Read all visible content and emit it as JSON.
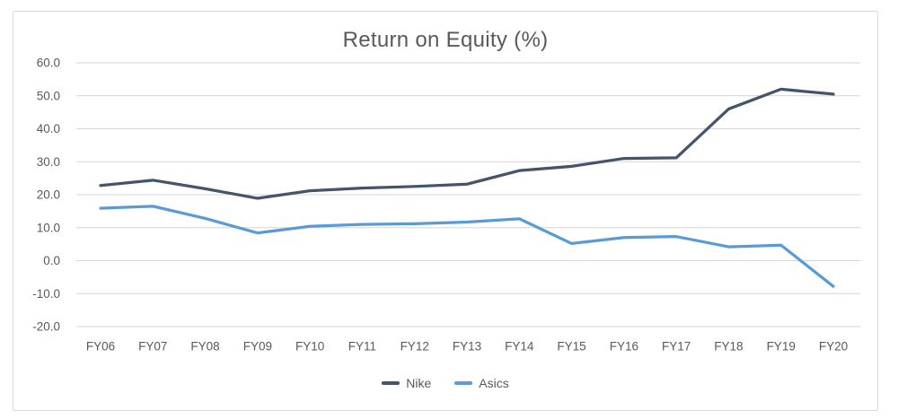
{
  "chart_data": {
    "type": "line",
    "title": "Return on Equity (%)",
    "categories": [
      "FY06",
      "FY07",
      "FY08",
      "FY09",
      "FY10",
      "FY11",
      "FY12",
      "FY13",
      "FY14",
      "FY15",
      "FY16",
      "FY17",
      "FY18",
      "FY19",
      "FY20"
    ],
    "series": [
      {
        "name": "Nike",
        "color": "#44546A",
        "values": [
          22.8,
          24.4,
          21.8,
          18.9,
          21.2,
          22.0,
          22.5,
          23.2,
          27.3,
          28.6,
          31.0,
          31.2,
          46.0,
          52.0,
          50.5
        ]
      },
      {
        "name": "Asics",
        "color": "#5B9BD5",
        "values": [
          15.9,
          16.5,
          12.8,
          8.4,
          10.4,
          11.0,
          11.2,
          11.7,
          12.7,
          5.2,
          7.0,
          7.3,
          4.2,
          4.7,
          -7.8
        ]
      }
    ],
    "xlabel": "",
    "ylabel": "",
    "ylim": [
      -20,
      60
    ],
    "ytick_step": 10,
    "ytick_decimals": 1,
    "ytick_labels": [
      "60.0",
      "50.0",
      "40.0",
      "30.0",
      "20.0",
      "10.0",
      "0.0",
      "-10.0",
      "-20.0"
    ],
    "grid": true,
    "legend_position": "bottom",
    "colors": {
      "title": "#595959",
      "axis_labels": "#595959",
      "gridline": "#D6D6D6",
      "frame_border": "#D9D9D9",
      "background": "#FFFFFF"
    }
  }
}
